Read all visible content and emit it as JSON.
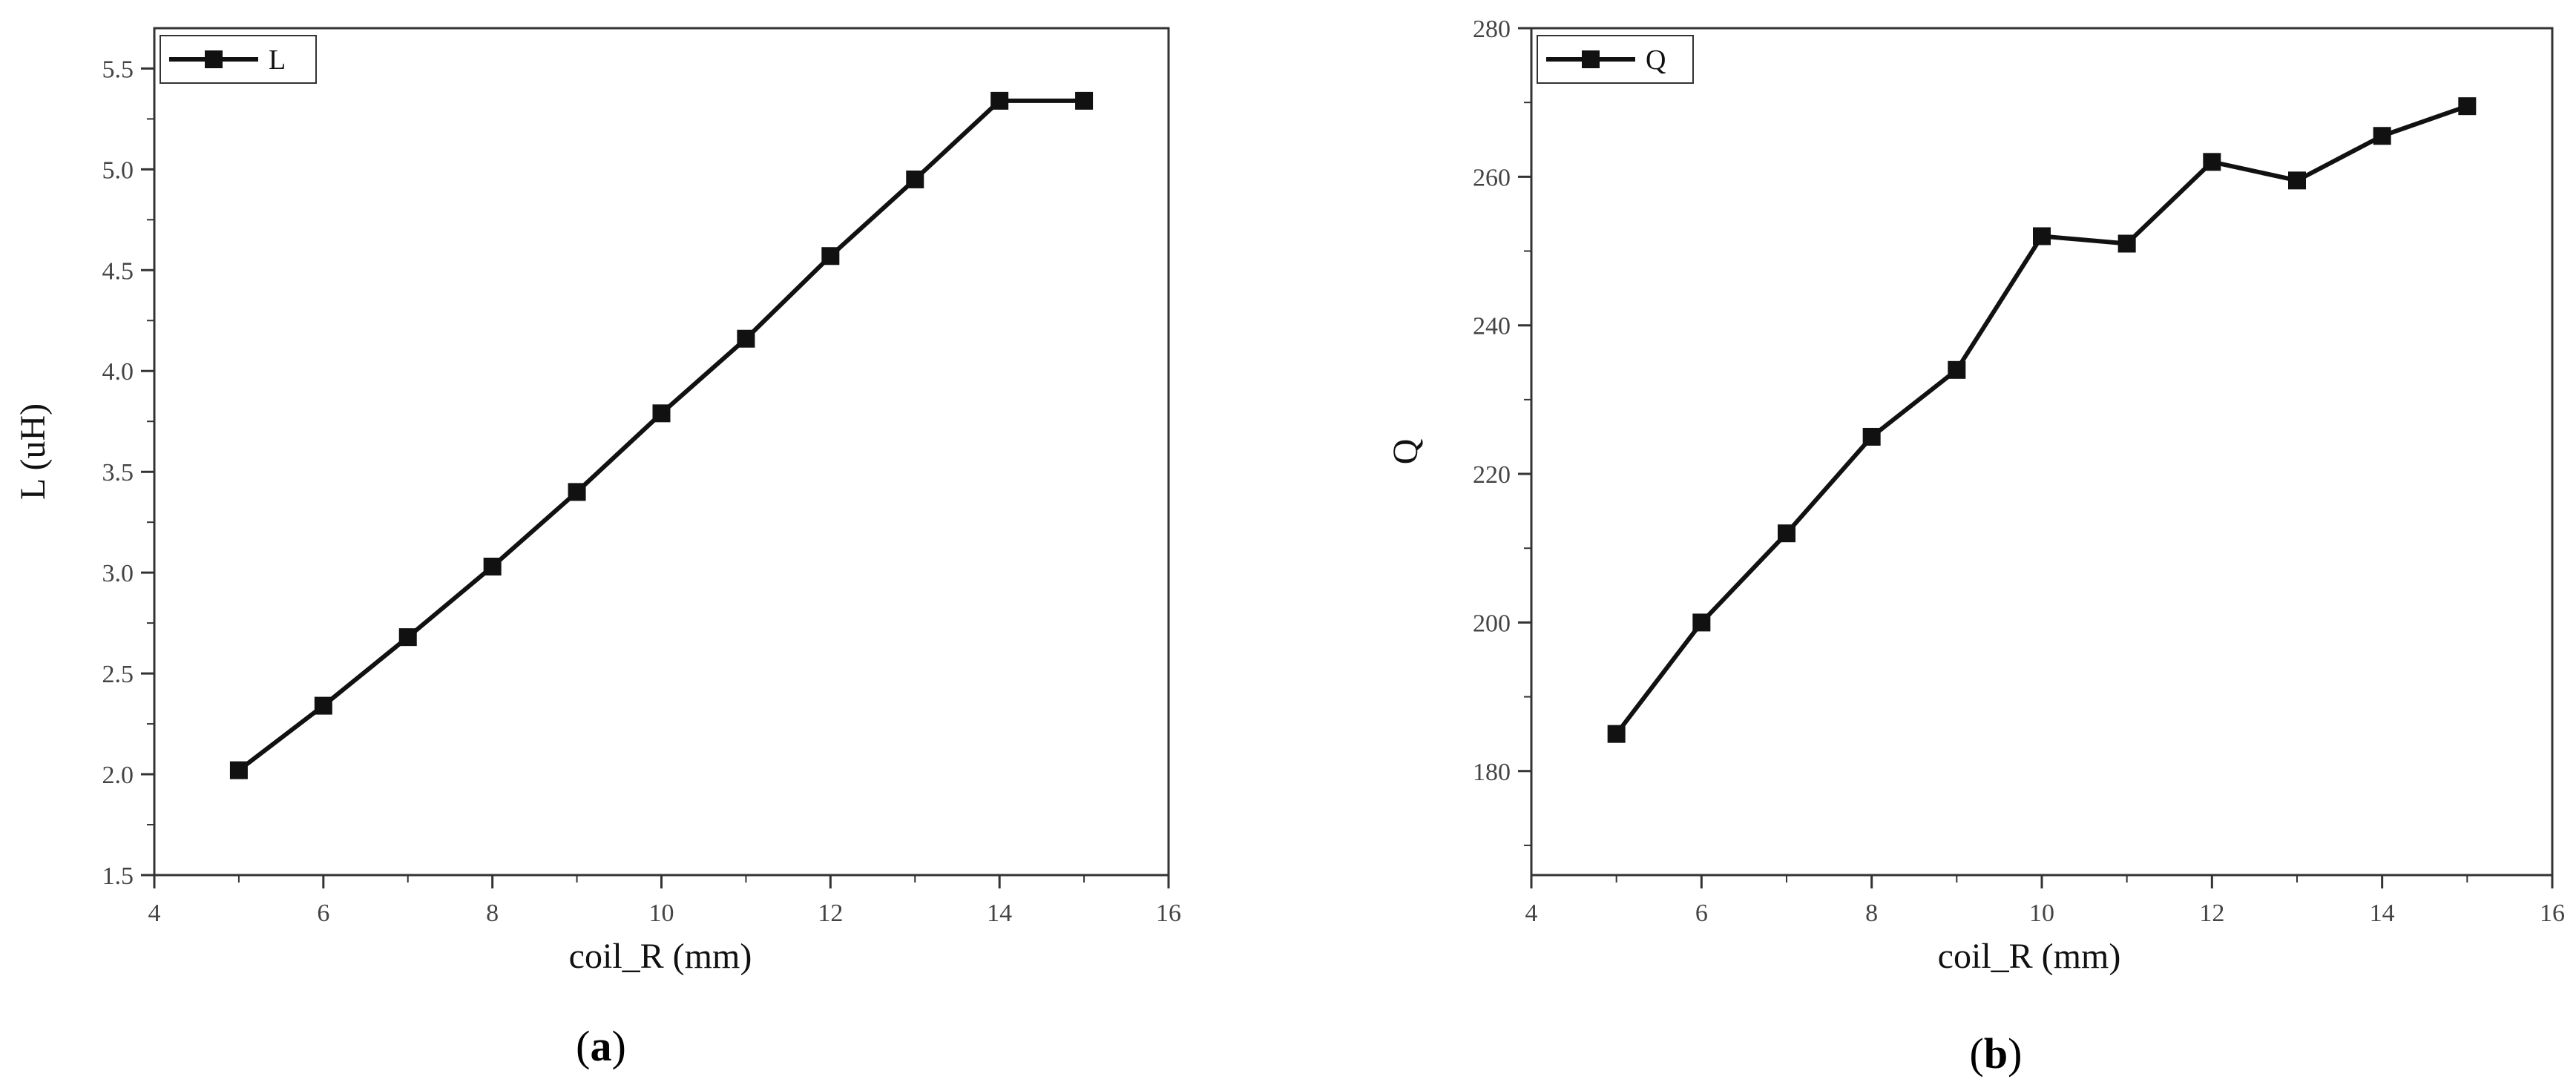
{
  "chart_data": [
    {
      "type": "line",
      "panel_label": "a",
      "xlabel": "coil_R (mm)",
      "ylabel": "L (uH)",
      "xlim": [
        4,
        16
      ],
      "ylim": [
        1.5,
        5.7
      ],
      "xticks": [
        4,
        6,
        8,
        10,
        12,
        14,
        16
      ],
      "yticks": [
        1.5,
        2.0,
        2.5,
        3.0,
        3.5,
        4.0,
        4.5,
        5.0,
        5.5
      ],
      "ytick_labels": [
        "1.5",
        "2.0",
        "2.5",
        "3.0",
        "3.5",
        "4.0",
        "4.5",
        "5.0",
        "5.5"
      ],
      "grid": false,
      "legend_position": "top-left",
      "series": [
        {
          "name": "L",
          "color": "#111111",
          "marker": "square",
          "x": [
            5,
            6,
            7,
            8,
            9,
            10,
            11,
            12,
            13,
            14,
            15
          ],
          "y": [
            2.02,
            2.34,
            2.68,
            3.03,
            3.4,
            3.79,
            4.16,
            4.57,
            4.95,
            5.34,
            5.34
          ]
        }
      ]
    },
    {
      "type": "line",
      "panel_label": "b",
      "xlabel": "coil_R (mm)",
      "ylabel": "Q",
      "xlim": [
        4,
        16
      ],
      "ylim": [
        166,
        280
      ],
      "xticks": [
        4,
        6,
        8,
        10,
        12,
        14,
        16
      ],
      "yticks": [
        180,
        200,
        220,
        240,
        260,
        280
      ],
      "ytick_labels": [
        "180",
        "200",
        "220",
        "240",
        "260",
        "280"
      ],
      "grid": false,
      "legend_position": "top-left",
      "series": [
        {
          "name": "Q",
          "color": "#111111",
          "marker": "square",
          "x": [
            5,
            6,
            7,
            8,
            9,
            10,
            11,
            12,
            13,
            14,
            15
          ],
          "y": [
            185,
            200,
            212,
            225,
            234,
            252,
            251,
            262,
            259.5,
            265.5,
            269.5
          ]
        }
      ]
    }
  ]
}
